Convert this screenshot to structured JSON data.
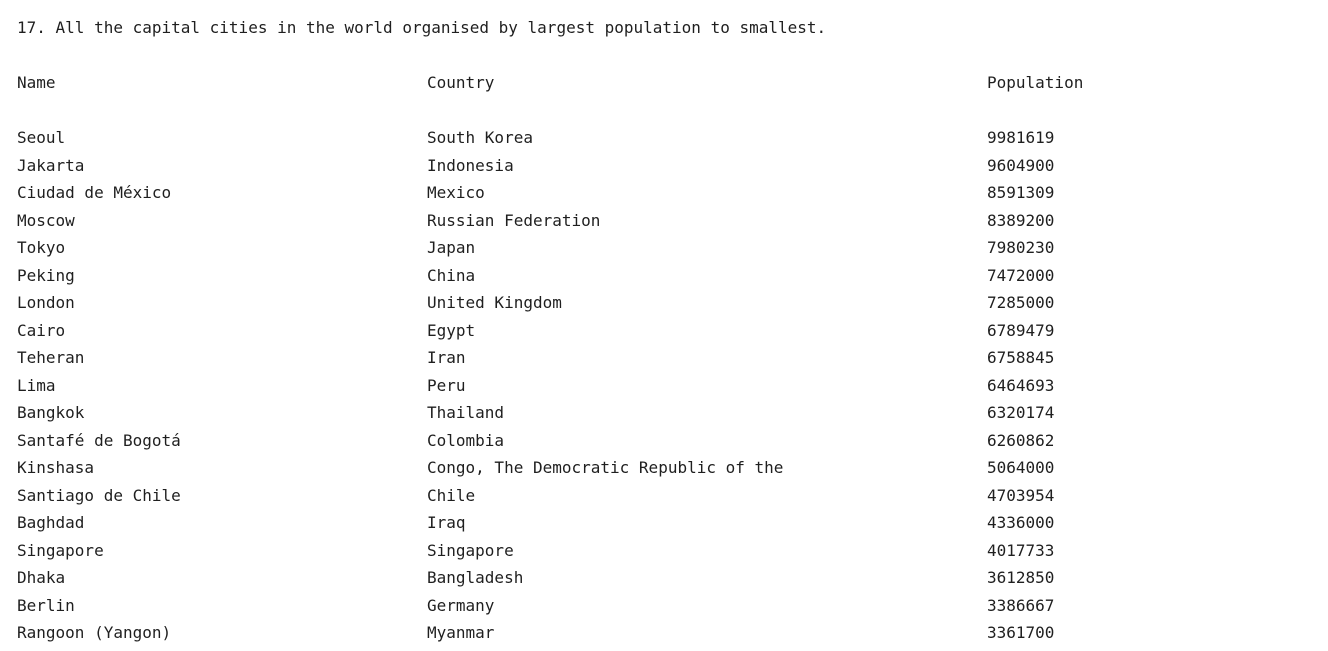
{
  "console": {
    "title": "17. All the capital cities in the world organised by largest population to smallest.",
    "headers": {
      "name": "Name",
      "country": "Country",
      "population": "Population"
    },
    "rows": [
      {
        "name": "Seoul",
        "country": "South Korea",
        "population": "9981619"
      },
      {
        "name": "Jakarta",
        "country": "Indonesia",
        "population": "9604900"
      },
      {
        "name": "Ciudad de México",
        "country": "Mexico",
        "population": "8591309"
      },
      {
        "name": "Moscow",
        "country": "Russian Federation",
        "population": "8389200"
      },
      {
        "name": "Tokyo",
        "country": "Japan",
        "population": "7980230"
      },
      {
        "name": "Peking",
        "country": "China",
        "population": "7472000"
      },
      {
        "name": "London",
        "country": "United Kingdom",
        "population": "7285000"
      },
      {
        "name": "Cairo",
        "country": "Egypt",
        "population": "6789479"
      },
      {
        "name": "Teheran",
        "country": "Iran",
        "population": "6758845"
      },
      {
        "name": "Lima",
        "country": "Peru",
        "population": "6464693"
      },
      {
        "name": "Bangkok",
        "country": "Thailand",
        "population": "6320174"
      },
      {
        "name": "Santafé de Bogotá",
        "country": "Colombia",
        "population": "6260862"
      },
      {
        "name": "Kinshasa",
        "country": "Congo, The Democratic Republic of the",
        "population": "5064000"
      },
      {
        "name": "Santiago de Chile",
        "country": "Chile",
        "population": "4703954"
      },
      {
        "name": "Baghdad",
        "country": "Iraq",
        "population": "4336000"
      },
      {
        "name": "Singapore",
        "country": "Singapore",
        "population": "4017733"
      },
      {
        "name": "Dhaka",
        "country": "Bangladesh",
        "population": "3612850"
      },
      {
        "name": "Berlin",
        "country": "Germany",
        "population": "3386667"
      },
      {
        "name": "Rangoon (Yangon)",
        "country": "Myanmar",
        "population": "3361700"
      }
    ]
  }
}
